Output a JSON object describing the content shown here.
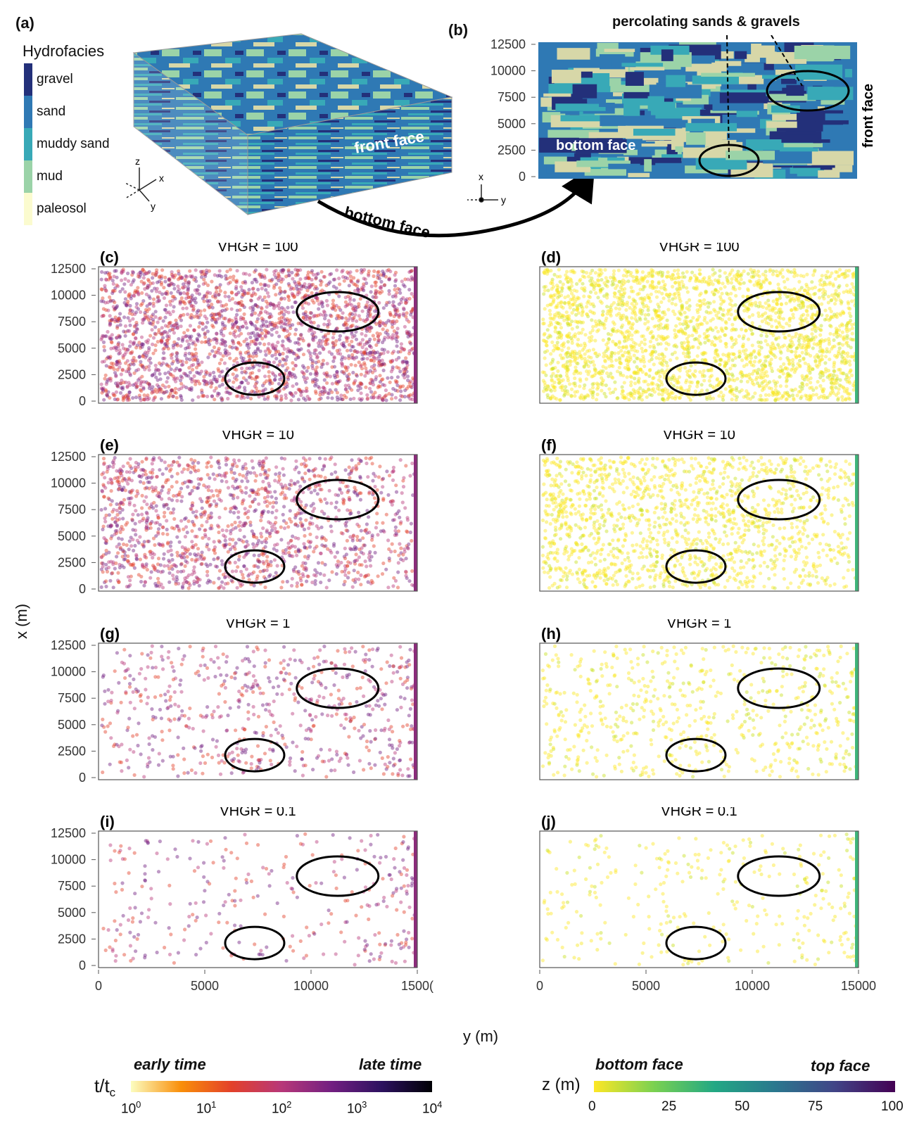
{
  "panel_a": {
    "label": "(a)",
    "legend_title": "Hydrofacies",
    "facies": [
      {
        "name": "gravel",
        "color": "#23307a"
      },
      {
        "name": "sand",
        "color": "#2f79b4"
      },
      {
        "name": "muddy sand",
        "color": "#38a9b7"
      },
      {
        "name": "mud",
        "color": "#9bd3a8"
      },
      {
        "name": "paleosol",
        "color": "#fbfbcf"
      }
    ],
    "front_face_label": "front face",
    "axes": {
      "z": "z",
      "x": "x",
      "y": "y"
    }
  },
  "arrow_label": "bottom face",
  "panel_b": {
    "label": "(b)",
    "annotation": "percolating sands & gravels",
    "bottom_face_label": "bottom face",
    "front_face_label": "front face",
    "y_ticks": [
      "12500",
      "10000",
      "7500",
      "5000",
      "2500",
      "0"
    ],
    "axes": {
      "x": "x",
      "y": "y"
    }
  },
  "chart_data": [
    {
      "type": "scatter",
      "panel": "(c)",
      "title": "VHGR = 100",
      "colorby": "t/tc",
      "density": 1.0
    },
    {
      "type": "scatter",
      "panel": "(d)",
      "title": "VHGR = 100",
      "colorby": "z",
      "density": 1.0
    },
    {
      "type": "scatter",
      "panel": "(e)",
      "title": "VHGR = 10",
      "colorby": "t/tc",
      "density": 0.6
    },
    {
      "type": "scatter",
      "panel": "(f)",
      "title": "VHGR = 10",
      "colorby": "z",
      "density": 0.6
    },
    {
      "type": "scatter",
      "panel": "(g)",
      "title": "VHGR = 1",
      "colorby": "t/tc",
      "density": 0.25
    },
    {
      "type": "scatter",
      "panel": "(h)",
      "title": "VHGR = 1",
      "colorby": "z",
      "density": 0.25
    },
    {
      "type": "scatter",
      "panel": "(i)",
      "title": "VHGR = 0.1",
      "colorby": "t/tc",
      "density": 0.12
    },
    {
      "type": "scatter",
      "panel": "(j)",
      "title": "VHGR = 0.1",
      "colorby": "z",
      "density": 0.12
    }
  ],
  "axes": {
    "xlabel": "y (m)",
    "ylabel": "x (m)",
    "y_ticks": [
      "12500",
      "10000",
      "7500",
      "5000",
      "2500",
      "0"
    ],
    "x_ticks_left": [
      "0",
      "5000",
      "10000",
      "1500("
    ],
    "x_ticks_right": [
      "0",
      "5000",
      "10000",
      "15000"
    ],
    "xlim": [
      0,
      15000
    ],
    "ylim": [
      0,
      12500
    ]
  },
  "colorbar_time": {
    "left_note": "early time",
    "right_note": "late time",
    "label": "t/t",
    "label_sub": "c",
    "ticks": [
      {
        "base": "10",
        "exp": "0"
      },
      {
        "base": "10",
        "exp": "1"
      },
      {
        "base": "10",
        "exp": "2"
      },
      {
        "base": "10",
        "exp": "3"
      },
      {
        "base": "10",
        "exp": "4"
      }
    ],
    "colors": [
      "#fcfdbf",
      "#f98e09",
      "#e3412a",
      "#b73779",
      "#721f81",
      "#2c115f",
      "#000004"
    ]
  },
  "colorbar_z": {
    "left_note": "bottom face",
    "right_note": "top face",
    "label": "z (m)",
    "ticks": [
      "0",
      "25",
      "50",
      "75",
      "100"
    ],
    "colors": [
      "#fde725",
      "#7ad151",
      "#22a884",
      "#2a788e",
      "#414487",
      "#440154"
    ]
  }
}
